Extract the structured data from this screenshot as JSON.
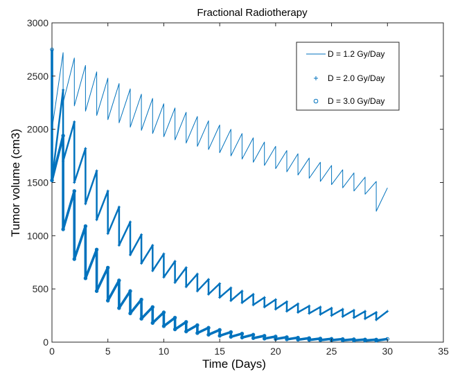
{
  "chart_data": {
    "type": "line",
    "title": "Fractional Radiotherapy",
    "xlabel": "Time (Days)",
    "ylabel": "Tumor volume (cm3)",
    "xlim": [
      0,
      35
    ],
    "ylim": [
      0,
      3000
    ],
    "xticks": [
      0,
      5,
      10,
      15,
      20,
      25,
      30,
      35
    ],
    "yticks": [
      0,
      500,
      1000,
      1500,
      2000,
      2500,
      3000
    ],
    "grid": false,
    "legend_position": "top-right",
    "line_color": "#0072BD",
    "series": [
      {
        "name": "D = 1.2 Gy/Day",
        "marker": "line",
        "dose_days": 29,
        "x": [
          0,
          1,
          1,
          2,
          2,
          3,
          3,
          4,
          4,
          5,
          5,
          6,
          6,
          7,
          7,
          8,
          8,
          9,
          9,
          10,
          10,
          11,
          11,
          12,
          12,
          13,
          13,
          14,
          14,
          15,
          15,
          16,
          16,
          17,
          17,
          18,
          18,
          19,
          19,
          20,
          20,
          21,
          21,
          22,
          22,
          23,
          23,
          24,
          24,
          25,
          25,
          26,
          26,
          27,
          27,
          28,
          28,
          29,
          29,
          30
        ],
        "y": [
          2000,
          2720,
          2250,
          2670,
          2220,
          2600,
          2170,
          2540,
          2130,
          2480,
          2090,
          2430,
          2060,
          2380,
          2020,
          2330,
          1990,
          2290,
          1960,
          2240,
          1930,
          2200,
          1900,
          2160,
          1870,
          2120,
          1840,
          2080,
          1810,
          2040,
          1780,
          2000,
          1750,
          1960,
          1720,
          1920,
          1690,
          1880,
          1660,
          1840,
          1630,
          1800,
          1600,
          1770,
          1570,
          1730,
          1540,
          1690,
          1510,
          1660,
          1480,
          1620,
          1450,
          1590,
          1420,
          1550,
          1390,
          1510,
          1230,
          1450
        ]
      },
      {
        "name": "D = 2.0 Gy/Day",
        "marker": "+",
        "dose_days": 29,
        "x": [
          0,
          1,
          1,
          2,
          2,
          3,
          3,
          4,
          4,
          5,
          5,
          6,
          6,
          7,
          7,
          8,
          8,
          9,
          9,
          10,
          10,
          11,
          11,
          12,
          12,
          13,
          13,
          14,
          14,
          15,
          15,
          16,
          16,
          17,
          17,
          18,
          18,
          19,
          19,
          20,
          20,
          21,
          21,
          22,
          22,
          23,
          23,
          24,
          24,
          25,
          25,
          26,
          26,
          27,
          27,
          28,
          28,
          29,
          29,
          30
        ],
        "y": [
          1520,
          2370,
          1700,
          2070,
          1500,
          1820,
          1300,
          1610,
          1150,
          1420,
          1020,
          1270,
          910,
          1130,
          820,
          1010,
          740,
          910,
          670,
          830,
          610,
          760,
          560,
          700,
          520,
          640,
          480,
          590,
          450,
          550,
          420,
          510,
          390,
          480,
          370,
          450,
          350,
          420,
          330,
          400,
          310,
          380,
          290,
          360,
          280,
          340,
          270,
          330,
          260,
          320,
          250,
          310,
          240,
          300,
          230,
          290,
          220,
          280,
          210,
          290
        ]
      },
      {
        "name": "D = 3.0 Gy/Day",
        "marker": "o",
        "dose_days": 29,
        "x": [
          0,
          0,
          1,
          1,
          2,
          2,
          3,
          3,
          4,
          4,
          5,
          5,
          6,
          6,
          7,
          7,
          8,
          8,
          9,
          9,
          10,
          10,
          11,
          11,
          12,
          12,
          13,
          13,
          14,
          14,
          15,
          15,
          16,
          16,
          17,
          17,
          18,
          18,
          19,
          19,
          20,
          20,
          21,
          21,
          22,
          22,
          23,
          23,
          24,
          24,
          25,
          25,
          26,
          26,
          27,
          27,
          28,
          28,
          29,
          29,
          30
        ],
        "y": [
          2750,
          1520,
          1940,
          1060,
          1420,
          780,
          1090,
          600,
          870,
          480,
          700,
          390,
          580,
          320,
          480,
          270,
          400,
          220,
          330,
          180,
          280,
          150,
          230,
          120,
          190,
          100,
          160,
          85,
          135,
          70,
          115,
          60,
          95,
          50,
          80,
          43,
          70,
          38,
          60,
          33,
          53,
          29,
          47,
          26,
          42,
          23,
          38,
          21,
          34,
          19,
          31,
          18,
          29,
          17,
          27,
          16,
          25,
          15,
          24,
          14,
          30
        ]
      }
    ]
  }
}
